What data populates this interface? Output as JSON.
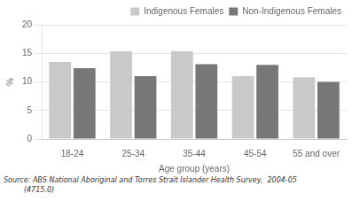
{
  "chart_data": {
    "type": "bar",
    "categories": [
      "18-24",
      "25-34",
      "35-44",
      "45-54",
      "55 and over"
    ],
    "series": [
      {
        "name": "Indigenous Females",
        "color": "#c9c9c9",
        "values": [
          13.5,
          15.4,
          15.4,
          11.0,
          10.8
        ]
      },
      {
        "name": "Non-Indigenous Females",
        "color": "#777777",
        "values": [
          12.4,
          11.0,
          13.1,
          13.0,
          10.0
        ]
      }
    ],
    "xlabel": "Age group (years)",
    "ylabel": "%",
    "ylim": [
      0,
      20
    ],
    "yticks": [
      0,
      5,
      10,
      15,
      20
    ],
    "grid": true,
    "legend": "upper right",
    "annotations": [
      "Source: ABS National Aboriginal and Torres Strait Islander Health Survey,  2004-05",
      "         (4715.0)"
    ]
  }
}
